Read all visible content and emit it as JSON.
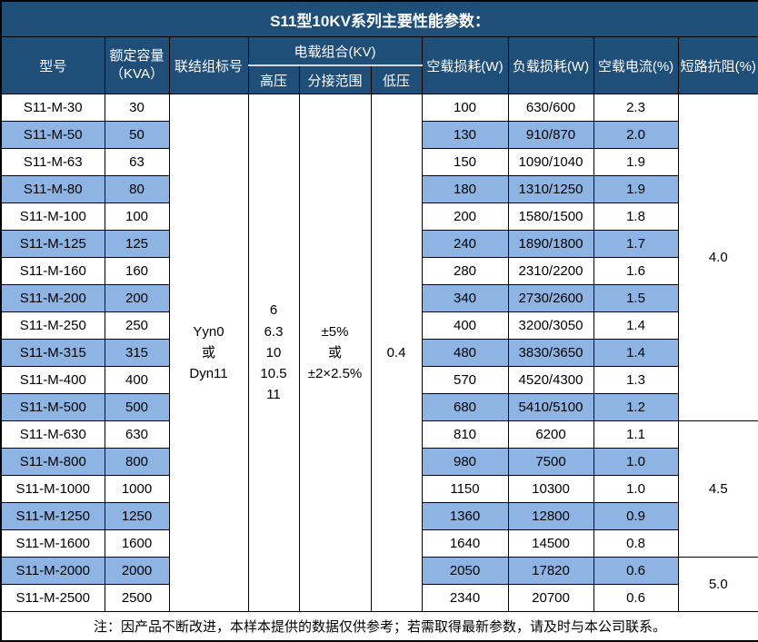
{
  "title": "S11型10KV系列主要性能参数：",
  "colors": {
    "header_bg": "#1F4E79",
    "stripe_bg": "#8DB4E2",
    "border": "#000000",
    "header_text": "#ffffff",
    "body_text": "#000000"
  },
  "header": {
    "model": "型号",
    "capacity_line1": "额定容量",
    "capacity_line2": "（KVA）",
    "connection": "联结组标号",
    "voltage_group": "电载组合(KV)",
    "hv": "高压",
    "tap_range": "分接范围",
    "lv": "低压",
    "no_load_loss": "空载损耗(W)",
    "load_loss": "负载损耗(W)",
    "no_load_current": "空载电流(%)",
    "impedance": "短路抗阻(%)"
  },
  "merged": {
    "connection": "Yyn0\n或\nDyn11",
    "hv": "6\n6.3\n10\n10.5\n11",
    "tap_range": "±5%\n或\n±2×2.5%",
    "lv": "0.4"
  },
  "impedance_groups": [
    {
      "value": "4.0",
      "rows": 12
    },
    {
      "value": "4.5",
      "rows": 5
    },
    {
      "value": "5.0",
      "rows": 2
    }
  ],
  "rows": [
    {
      "model": "S11-M-30",
      "capacity": "30",
      "no_load_loss": "100",
      "load_loss": "630/600",
      "no_load_current": "2.3"
    },
    {
      "model": "S11-M-50",
      "capacity": "50",
      "no_load_loss": "130",
      "load_loss": "910/870",
      "no_load_current": "2.0"
    },
    {
      "model": "S11-M-63",
      "capacity": "63",
      "no_load_loss": "150",
      "load_loss": "1090/1040",
      "no_load_current": "1.9"
    },
    {
      "model": "S11-M-80",
      "capacity": "80",
      "no_load_loss": "180",
      "load_loss": "1310/1250",
      "no_load_current": "1.9"
    },
    {
      "model": "S11-M-100",
      "capacity": "100",
      "no_load_loss": "200",
      "load_loss": "1580/1500",
      "no_load_current": "1.8"
    },
    {
      "model": "S11-M-125",
      "capacity": "125",
      "no_load_loss": "240",
      "load_loss": "1890/1800",
      "no_load_current": "1.7"
    },
    {
      "model": "S11-M-160",
      "capacity": "160",
      "no_load_loss": "280",
      "load_loss": "2310/2200",
      "no_load_current": "1.6"
    },
    {
      "model": "S11-M-200",
      "capacity": "200",
      "no_load_loss": "340",
      "load_loss": "2730/2600",
      "no_load_current": "1.5"
    },
    {
      "model": "S11-M-250",
      "capacity": "250",
      "no_load_loss": "400",
      "load_loss": "3200/3050",
      "no_load_current": "1.4"
    },
    {
      "model": "S11-M-315",
      "capacity": "315",
      "no_load_loss": "480",
      "load_loss": "3830/3650",
      "no_load_current": "1.4"
    },
    {
      "model": "S11-M-400",
      "capacity": "400",
      "no_load_loss": "570",
      "load_loss": "4520/4300",
      "no_load_current": "1.3"
    },
    {
      "model": "S11-M-500",
      "capacity": "500",
      "no_load_loss": "680",
      "load_loss": "5410/5100",
      "no_load_current": "1.2"
    },
    {
      "model": "S11-M-630",
      "capacity": "630",
      "no_load_loss": "810",
      "load_loss": "6200",
      "no_load_current": "1.1"
    },
    {
      "model": "S11-M-800",
      "capacity": "800",
      "no_load_loss": "980",
      "load_loss": "7500",
      "no_load_current": "1.0"
    },
    {
      "model": "S11-M-1000",
      "capacity": "1000",
      "no_load_loss": "1150",
      "load_loss": "10300",
      "no_load_current": "1.0"
    },
    {
      "model": "S11-M-1250",
      "capacity": "1250",
      "no_load_loss": "1360",
      "load_loss": "12800",
      "no_load_current": "0.9"
    },
    {
      "model": "S11-M-1600",
      "capacity": "1600",
      "no_load_loss": "1640",
      "load_loss": "14500",
      "no_load_current": "0.8"
    },
    {
      "model": "S11-M-2000",
      "capacity": "2000",
      "no_load_loss": "2050",
      "load_loss": "17820",
      "no_load_current": "0.6"
    },
    {
      "model": "S11-M-2500",
      "capacity": "2500",
      "no_load_loss": "2340",
      "load_loss": "20700",
      "no_load_current": "0.6"
    }
  ],
  "footer": "注：因产品不断改进，本样本提供的数据仅供参考；若需取得最新参数，请及时与本公司联系。"
}
